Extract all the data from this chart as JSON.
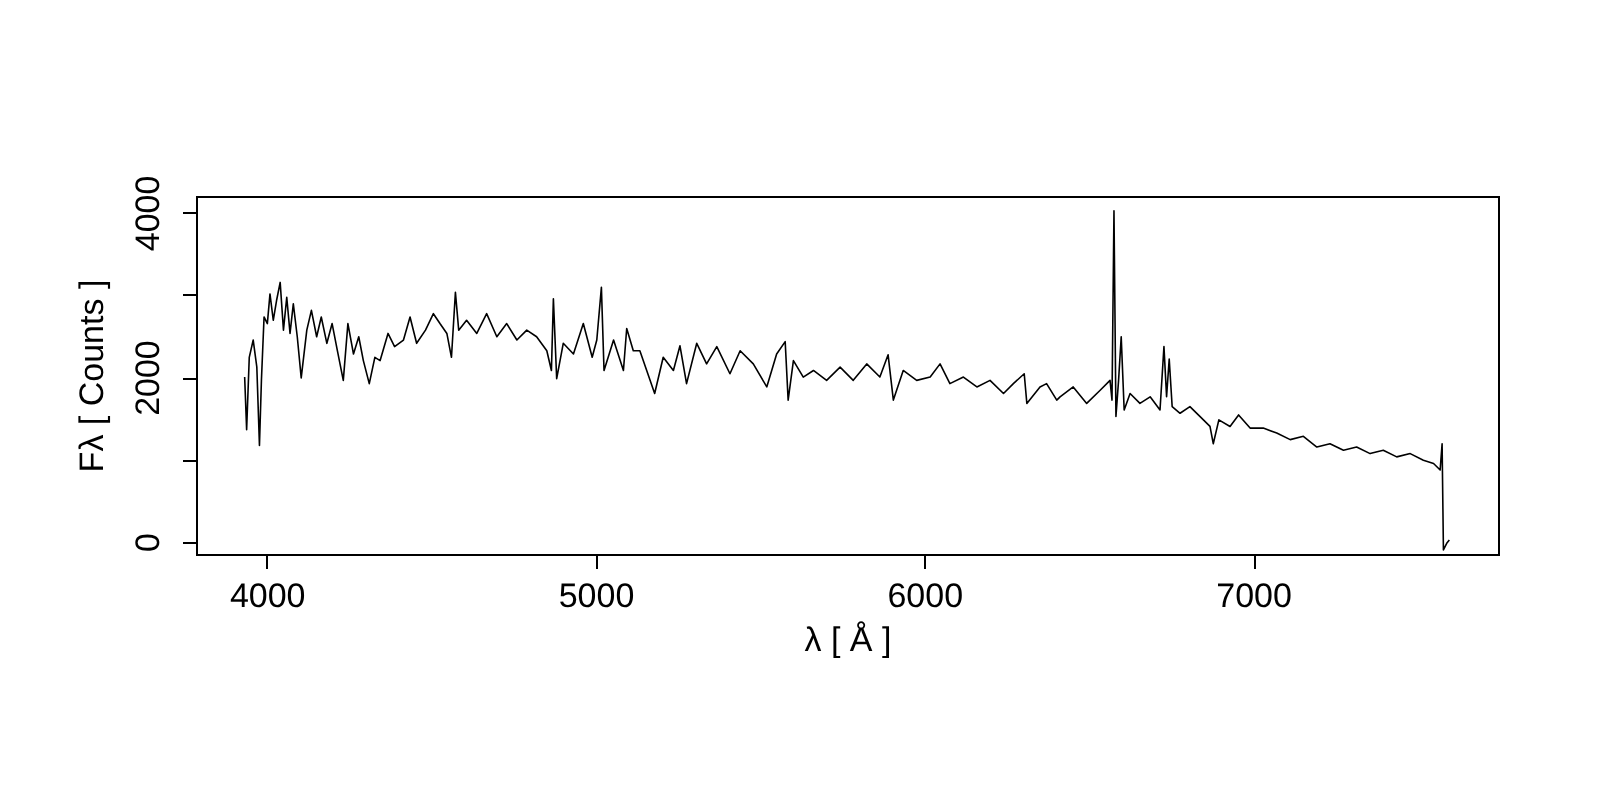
{
  "chart_data": {
    "type": "line",
    "xlabel": "λ [ Å ]",
    "ylabel": "Fλ [ Counts ]",
    "color": "#000000",
    "grid": false,
    "xlim": [
      3785,
      7745
    ],
    "ylim": [
      -150,
      4200
    ],
    "xticks": [
      4000,
      5000,
      6000,
      7000
    ],
    "yticks": [
      0,
      {
        "value": 1000,
        "label": null
      },
      2000,
      {
        "value": 3000,
        "label": null
      },
      4000
    ],
    "x": [
      3933,
      3939,
      3947,
      3959,
      3970,
      3978,
      3984,
      3992,
      4002,
      4010,
      4020,
      4030,
      4041,
      4051,
      4061,
      4071,
      4081,
      4093,
      4105,
      4122,
      4136,
      4152,
      4166,
      4183,
      4199,
      4215,
      4233,
      4247,
      4264,
      4280,
      4294,
      4312,
      4329,
      4345,
      4369,
      4389,
      4416,
      4436,
      4456,
      4483,
      4507,
      4527,
      4548,
      4562,
      4574,
      4584,
      4608,
      4639,
      4669,
      4700,
      4730,
      4761,
      4791,
      4821,
      4852,
      4866,
      4872,
      4882,
      4902,
      4933,
      4963,
      4990,
      5004,
      5018,
      5026,
      5055,
      5085,
      5095,
      5115,
      5135,
      5180,
      5206,
      5237,
      5257,
      5277,
      5308,
      5338,
      5369,
      5409,
      5440,
      5480,
      5521,
      5551,
      5577,
      5586,
      5602,
      5632,
      5663,
      5703,
      5744,
      5784,
      5825,
      5865,
      5890,
      5906,
      5936,
      5977,
      6018,
      6048,
      6078,
      6119,
      6160,
      6200,
      6241,
      6271,
      6304,
      6312,
      6352,
      6372,
      6403,
      6413,
      6453,
      6494,
      6535,
      6565,
      6571,
      6577,
      6583,
      6591,
      6599,
      6608,
      6626,
      6656,
      6687,
      6717,
      6729,
      6737,
      6745,
      6754,
      6778,
      6808,
      6839,
      6869,
      6879,
      6896,
      6930,
      6956,
      6991,
      7031,
      7072,
      7113,
      7153,
      7194,
      7234,
      7275,
      7315,
      7356,
      7396,
      7437,
      7478,
      7518,
      7549,
      7569,
      7575,
      7579,
      7589,
      7597
    ],
    "values": [
      2000,
      1360,
      2240,
      2450,
      2120,
      1170,
      1960,
      2730,
      2650,
      3010,
      2690,
      2930,
      3150,
      2570,
      2970,
      2530,
      2890,
      2490,
      1990,
      2570,
      2810,
      2490,
      2730,
      2410,
      2650,
      2320,
      1960,
      2650,
      2280,
      2490,
      2200,
      1920,
      2240,
      2200,
      2530,
      2370,
      2450,
      2730,
      2410,
      2570,
      2770,
      2650,
      2530,
      2240,
      3030,
      2570,
      2690,
      2530,
      2770,
      2490,
      2650,
      2450,
      2570,
      2490,
      2320,
      2080,
      2950,
      1980,
      2410,
      2280,
      2650,
      2240,
      2450,
      3090,
      2080,
      2450,
      2080,
      2590,
      2320,
      2320,
      1800,
      2240,
      2080,
      2380,
      1920,
      2410,
      2160,
      2370,
      2040,
      2320,
      2160,
      1880,
      2280,
      2430,
      1720,
      2200,
      2000,
      2080,
      1960,
      2120,
      1960,
      2160,
      2000,
      2270,
      1720,
      2080,
      1960,
      2000,
      2160,
      1920,
      2000,
      1880,
      1960,
      1800,
      1920,
      2040,
      1680,
      1880,
      1920,
      1720,
      1760,
      1880,
      1680,
      1840,
      1960,
      1720,
      4020,
      1520,
      1960,
      2490,
      1600,
      1800,
      1680,
      1760,
      1600,
      2370,
      1760,
      2220,
      1640,
      1560,
      1640,
      1520,
      1400,
      1190,
      1480,
      1400,
      1540,
      1380,
      1380,
      1320,
      1240,
      1280,
      1150,
      1190,
      1110,
      1150,
      1070,
      1110,
      1030,
      1070,
      990,
      950,
      870,
      1190,
      -100,
      -20,
      20
    ]
  }
}
